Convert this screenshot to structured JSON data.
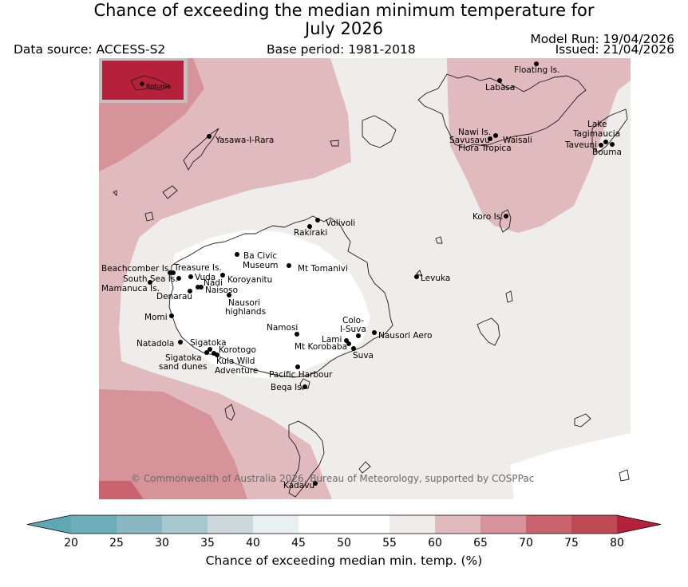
{
  "header": {
    "title_line1": "Chance of exceeding the median minimum temperature for",
    "title_line2": "July 2026",
    "data_source": "Data source: ACCESS-S2",
    "base_period": "Base period: 1981-2018",
    "model_run": "Model Run: 19/04/2026",
    "issued": "Issued: 21/04/2026"
  },
  "map": {
    "inset_label": "Rotuma",
    "copyright": "© Commonwealth of Australia 2026, Bureau of Meteorology, supported by COSPPac",
    "places": {
      "floating": "Floating Is.",
      "labasa": "Labasa",
      "nawi": "Nawi Is.",
      "savusavu": "Savusavu",
      "waisali": "Waisali",
      "flora": "Flora Tropica",
      "lake": "Lake",
      "tagimaucia": "Tagimaucia",
      "taveuni": "Taveuni",
      "bouma": "Bouma",
      "yasawa": "Yasawa-I-Rara",
      "koro": "Koro Is.",
      "volivoli": "Volivoli",
      "rakiraki": "Rakiraki",
      "bacivic1": "Ba Civic",
      "bacivic2": "Museum",
      "tomanivi": "Mt Tomanivi",
      "beachcomber": "Beachcomber Is.",
      "treasure": "Treasure Is.",
      "southsea": "South Sea Is.",
      "vuda": "Vuda",
      "nadi": "Nadi",
      "koroyanitu": "Koroyanitu",
      "mamanuca": "Mamanuca Is.",
      "naisoso": "Naisoso",
      "denarau": "Denarau",
      "nausori_h1": "Nausori",
      "nausori_h2": "highlands",
      "levuka": "Levuka",
      "momi": "Momi",
      "colo1": "Colo-",
      "colo2": "I-Suva",
      "namosi": "Namosi",
      "nausori_aero": "Nausori Aero",
      "lami": "Lami",
      "korobaba": "Mt Korobaba",
      "suva": "Suva",
      "natadola": "Natadola",
      "sigatoka": "Sigatoka",
      "korotogo": "Korotogo",
      "sig_dunes1": "Sigatoka",
      "sig_dunes2": "sand dunes",
      "kula1": "Kula Wild",
      "kula2": "Adventure",
      "pacific": "Pacific Harbour",
      "beqa": "Beqa Is.",
      "kadavu": "Kadavu"
    }
  },
  "colorbar": {
    "label": "Chance of exceeding median min. temp. (%)",
    "ticks": [
      "20",
      "25",
      "30",
      "35",
      "40",
      "45",
      "50",
      "55",
      "60",
      "65",
      "70",
      "75",
      "80"
    ],
    "colors": {
      "under": "#5ea8b5",
      "c20_25": "#6daebb",
      "c25_30": "#89b8c2",
      "c30_35": "#a6c8ce",
      "c35_40": "#cdd8dc",
      "c40_45": "#e9f0f2",
      "c45_50": "#ffffff",
      "c50_55": "#ffffff",
      "c55_60": "#eeedeb",
      "c60_65": "#e1babe",
      "c65_70": "#d6949a",
      "c70_75": "#c9646e",
      "c75_80": "#bf4a56",
      "over": "#b5203a"
    }
  }
}
